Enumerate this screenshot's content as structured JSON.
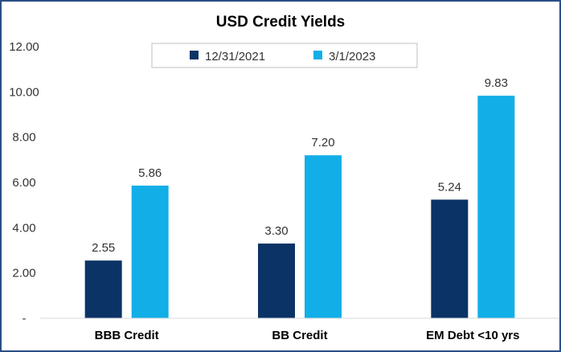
{
  "chart_data": {
    "type": "bar",
    "title": "USD Credit Yields",
    "categories": [
      "BBB Credit",
      "BB Credit",
      "EM Debt <10 yrs"
    ],
    "series": [
      {
        "name": "12/31/2021",
        "values": [
          2.55,
          3.3,
          5.24
        ],
        "color": "#0b3366"
      },
      {
        "name": "3/1/2023",
        "values": [
          5.86,
          7.2,
          9.83
        ],
        "color": "#12aee8"
      }
    ],
    "value_labels": [
      [
        "2.55",
        "3.30",
        "5.24"
      ],
      [
        "5.86",
        "7.20",
        "9.83"
      ]
    ],
    "y_ticks": [
      "-",
      "2.00",
      "4.00",
      "6.00",
      "8.00",
      "10.00",
      "12.00"
    ],
    "ylim": [
      0,
      12
    ],
    "grid": false,
    "legend_position": "top"
  }
}
